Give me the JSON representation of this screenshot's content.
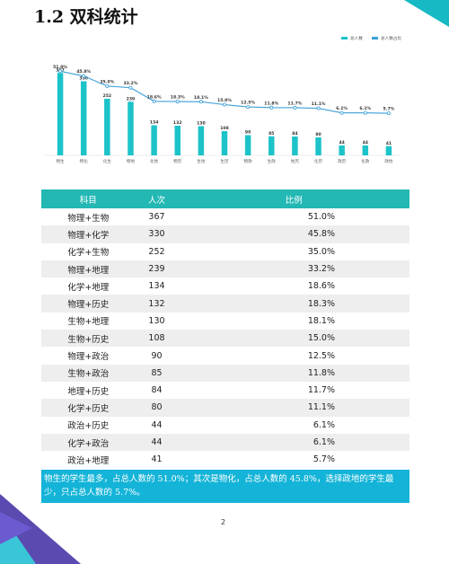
{
  "title": "1.2 双科统计",
  "colors": {
    "bar": "#1cc3c9",
    "line": "#3aa0d8",
    "header": "#23b8b4",
    "summary_bg": "#14b4d8"
  },
  "chart_data": {
    "type": "bar",
    "categories": [
      "物生",
      "物化",
      "化生",
      "物地",
      "化地",
      "物历",
      "生地",
      "生历",
      "物政",
      "生政",
      "地历",
      "化历",
      "政历",
      "化政",
      "政地"
    ],
    "series": [
      {
        "name": "总人数",
        "type": "bar",
        "values": [
          367,
          330,
          252,
          239,
          134,
          132,
          130,
          108,
          90,
          85,
          84,
          80,
          44,
          44,
          41
        ]
      },
      {
        "name": "总人数占比",
        "type": "line",
        "values": [
          51.0,
          45.8,
          35.0,
          33.2,
          18.6,
          18.3,
          18.1,
          15.0,
          12.5,
          11.8,
          11.7,
          11.1,
          6.1,
          6.1,
          5.7
        ]
      }
    ],
    "bar_labels": [
      "367",
      "330",
      "252",
      "239",
      "134",
      "132",
      "130",
      "108",
      "90",
      "85",
      "84",
      "80",
      "44",
      "44",
      "41"
    ],
    "line_labels": [
      "51.0%",
      "45.8%",
      "35.0%",
      "33.2%",
      "18.6%",
      "18.3%",
      "18.1%",
      "15.0%",
      "12.5%",
      "11.8%",
      "11.7%",
      "11.1%",
      "6.1%",
      "6.1%",
      "5.7%"
    ],
    "ylim_bar": [
      0,
      400
    ],
    "ylim_line": [
      0,
      60
    ],
    "legend_position": "top-right",
    "grid": false
  },
  "table": {
    "headers": [
      "科目",
      "人次",
      "比例"
    ],
    "rows": [
      [
        "物理+生物",
        "367",
        "51.0%"
      ],
      [
        "物理+化学",
        "330",
        "45.8%"
      ],
      [
        "化学+生物",
        "252",
        "35.0%"
      ],
      [
        "物理+地理",
        "239",
        "33.2%"
      ],
      [
        "化学+地理",
        "134",
        "18.6%"
      ],
      [
        "物理+历史",
        "132",
        "18.3%"
      ],
      [
        "生物+地理",
        "130",
        "18.1%"
      ],
      [
        "生物+历史",
        "108",
        "15.0%"
      ],
      [
        "物理+政治",
        "90",
        "12.5%"
      ],
      [
        "生物+政治",
        "85",
        "11.8%"
      ],
      [
        "地理+历史",
        "84",
        "11.7%"
      ],
      [
        "化学+历史",
        "80",
        "11.1%"
      ],
      [
        "政治+历史",
        "44",
        "6.1%"
      ],
      [
        "化学+政治",
        "44",
        "6.1%"
      ],
      [
        "政治+地理",
        "41",
        "5.7%"
      ]
    ]
  },
  "summary": "物生的学生最多，占总人数的 51.0%；其次是物化，占总人数的 45.8%，选择政地的学生最少，只占总人数的 5.7%。",
  "page_number": "2"
}
